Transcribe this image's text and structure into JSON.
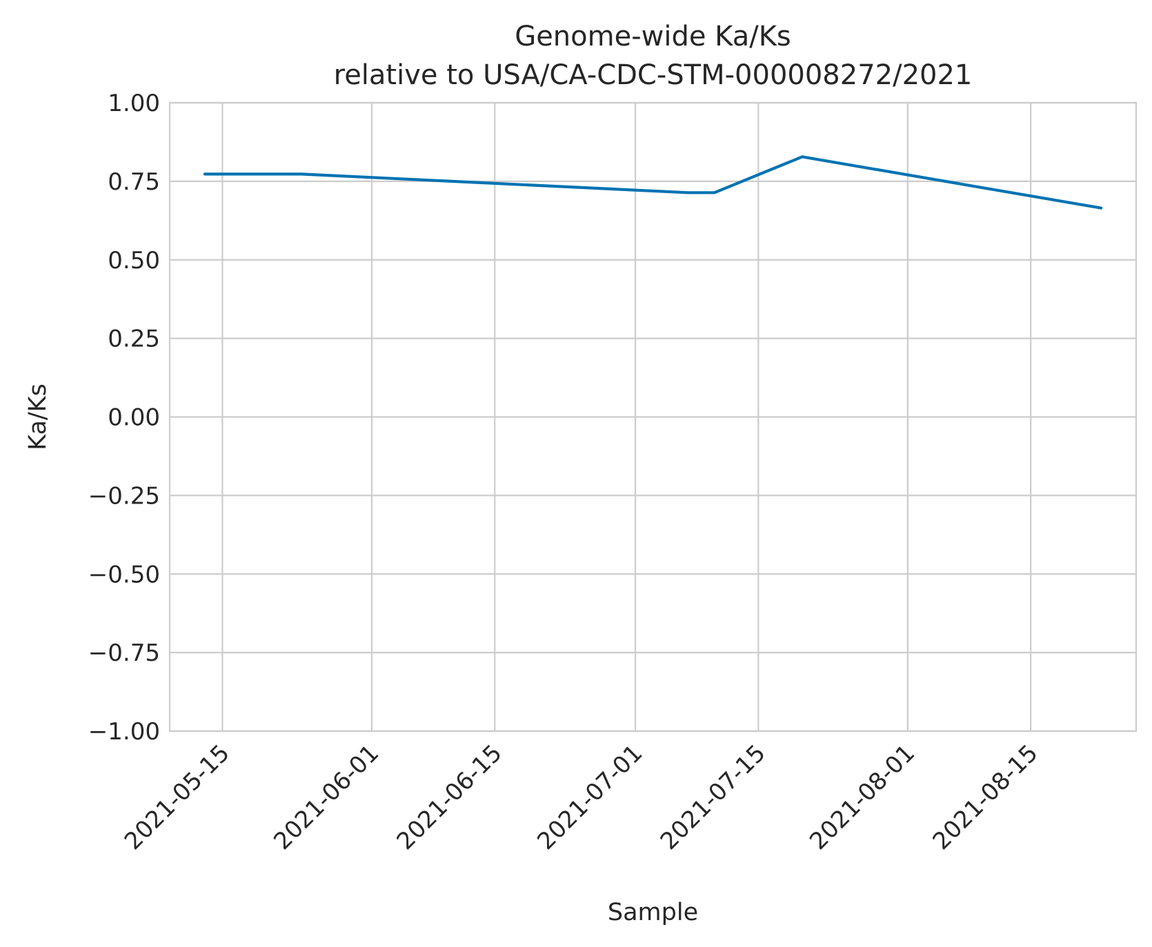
{
  "chart_data": {
    "type": "line",
    "title": [
      "Genome-wide Ka/Ks",
      "relative to USA/CA-CDC-STM-000008272/2021"
    ],
    "xlabel": "Sample",
    "ylabel": "Ka/Ks",
    "ylim": [
      -1.0,
      1.0
    ],
    "xlim": [
      "2021-05-09",
      "2021-08-27"
    ],
    "x_ticks": [
      "2021-05-15",
      "2021-06-01",
      "2021-06-15",
      "2021-07-01",
      "2021-07-15",
      "2021-08-01",
      "2021-08-15"
    ],
    "y_ticks": [
      1.0,
      0.75,
      0.5,
      0.25,
      0.0,
      -0.25,
      -0.5,
      -0.75,
      -1.0
    ],
    "y_tick_labels": [
      "1.00",
      "0.75",
      "0.50",
      "0.25",
      "0.00",
      "−0.25",
      "−0.50",
      "−0.75",
      "−1.00"
    ],
    "grid": true,
    "legend": "none",
    "color": "#0072b2",
    "series": [
      {
        "x": [
          "2021-05-13",
          "2021-05-24",
          "2021-07-07",
          "2021-07-10",
          "2021-07-20",
          "2021-08-23"
        ],
        "y": [
          0.773,
          0.773,
          0.714,
          0.714,
          0.828,
          0.665
        ]
      }
    ]
  }
}
